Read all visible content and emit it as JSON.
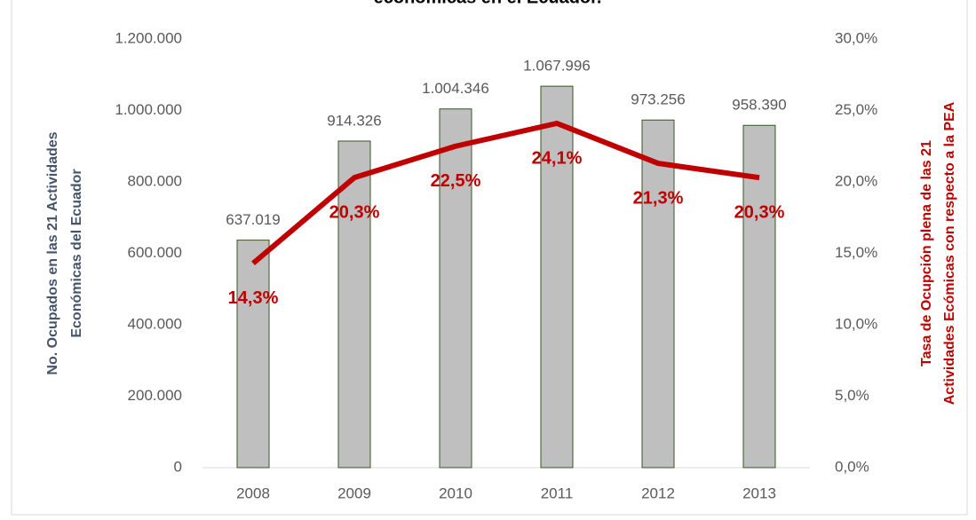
{
  "chart_data": {
    "type": "bar",
    "title": "económicas en el Ecuador.",
    "y_label": [
      "No. Ocupados en las 21 Actividades",
      "Económicas del Ecuador"
    ],
    "y2_label": [
      "Tasa de Ocupción plena de las 21",
      "Actividades Ecómicas con respecto a la PEA"
    ],
    "categories": [
      "2008",
      "2009",
      "2010",
      "2011",
      "2012",
      "2013"
    ],
    "series": [
      {
        "name": "No. Ocupados",
        "type": "bar",
        "color": "#bfbfbf",
        "edge_color": "#375623",
        "values": [
          637019,
          914326,
          1004346,
          1067996,
          973256,
          958390
        ],
        "value_labels": [
          "637.019",
          "914.326",
          "1.004.346",
          "1.067.996",
          "973.256",
          "958.390"
        ]
      },
      {
        "name": "Tasa de Ocupación plena",
        "type": "line",
        "axis": "y2",
        "color": "#c00000",
        "values": [
          14.3,
          20.3,
          22.5,
          24.1,
          21.3,
          20.3
        ],
        "value_labels": [
          "14,3%",
          "20,3%",
          "22,5%",
          "24,1%",
          "21,3%",
          "20,3%"
        ]
      }
    ],
    "ylim": [
      0,
      1200000
    ],
    "yticks": [
      0,
      {
        "value": 200000,
        "label": "200.000"
      },
      {
        "value": 400000,
        "label": "400.000"
      },
      {
        "value": 600000,
        "label": "600.000"
      },
      {
        "value": 800000,
        "label": "800.000"
      },
      {
        "value": 1000000,
        "label": "1.000.000"
      },
      {
        "value": 1200000,
        "label": "1.200.000"
      }
    ],
    "y2lim": [
      0,
      30
    ],
    "y2ticks": [
      {
        "value": 0,
        "label": "0,0%"
      },
      {
        "value": 5,
        "label": "5,0%"
      },
      {
        "value": 10,
        "label": "10,0%"
      },
      {
        "value": 15,
        "label": "15,0%"
      },
      {
        "value": 20,
        "label": "20,0%"
      },
      {
        "value": 25,
        "label": "25,0%"
      },
      {
        "value": 30,
        "label": "30,0%"
      }
    ]
  }
}
